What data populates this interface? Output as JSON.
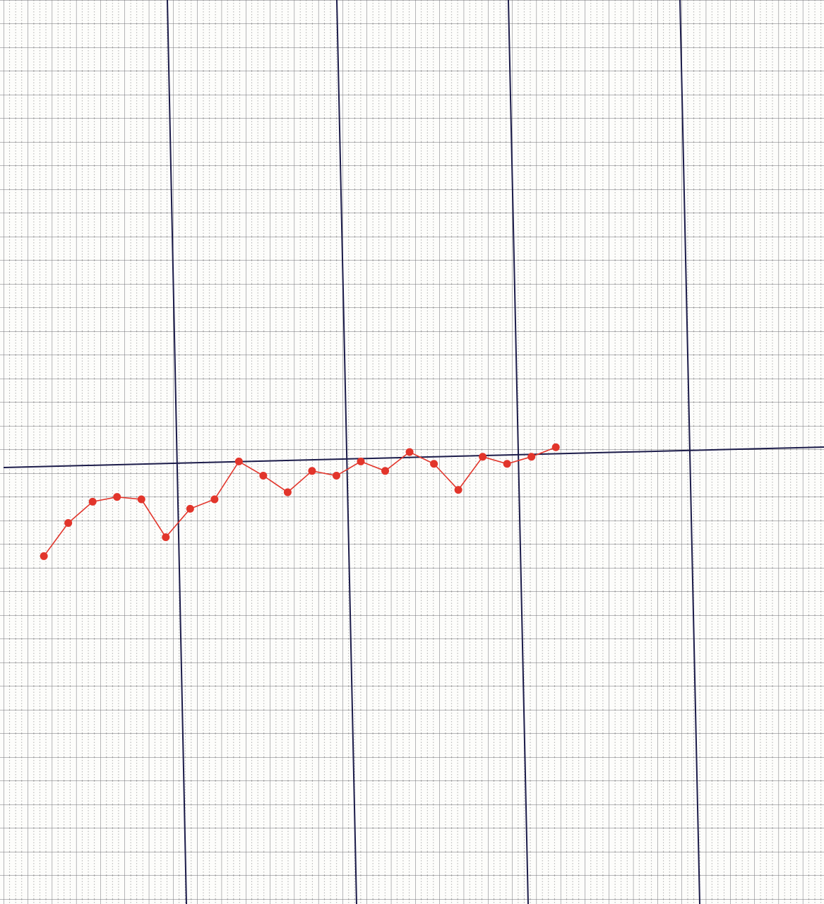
{
  "chart_data": {
    "type": "line",
    "x": [
      1,
      2,
      3,
      4,
      5,
      6,
      7,
      8,
      9,
      10,
      11,
      12,
      13,
      14,
      15,
      16,
      17,
      18,
      19,
      20,
      21,
      22
    ],
    "series": [
      {
        "color": "#e2352b",
        "values": [
          -4.1,
          -2.7,
          -1.8,
          -1.6,
          -1.7,
          -3.3,
          -2.1,
          -1.7,
          -0.1,
          -0.7,
          -1.4,
          -0.5,
          -0.7,
          -0.1,
          -0.5,
          0.3,
          -0.2,
          -1.3,
          0.1,
          -0.2,
          0.1,
          0.5
        ]
      }
    ],
    "xlim": [
      -0.8,
      33.0
    ],
    "ylim": [
      -18.8,
      19.4
    ]
  }
}
